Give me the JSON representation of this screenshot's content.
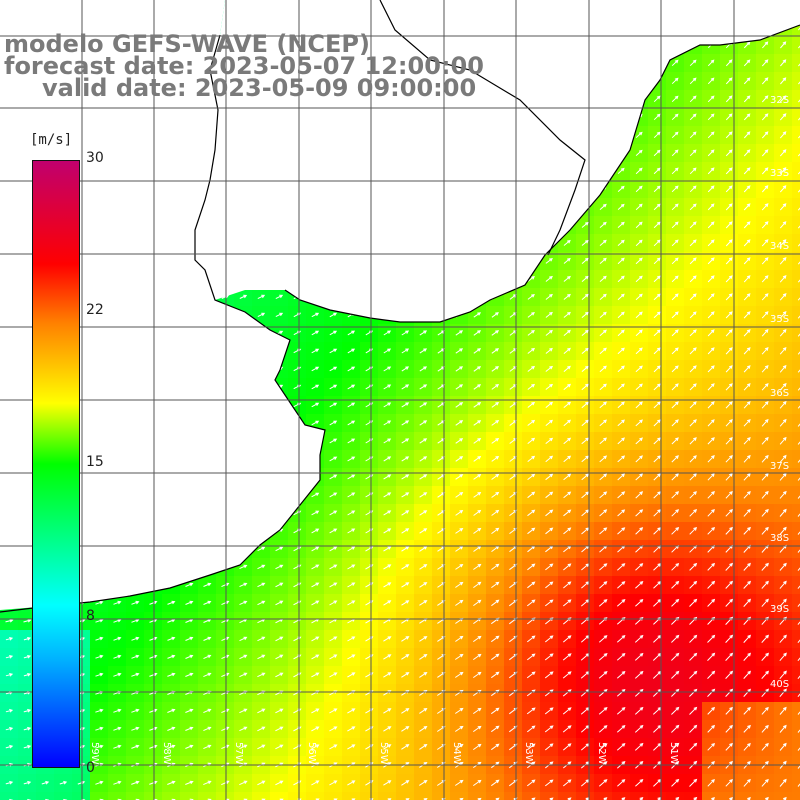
{
  "title": {
    "line1": "modelo GEFS-WAVE (NCEP)",
    "line2": "forecast date: 2023-05-07 12:00:00",
    "line3": "valid date: 2023-05-09 09:00:00"
  },
  "legend": {
    "unit": "[m/s]",
    "ticks": [
      "30",
      "22",
      "15",
      "8",
      "0"
    ],
    "tick_values": [
      30,
      22,
      15,
      8,
      0
    ],
    "scale_max": 30,
    "colors": [
      "#0000ff",
      "#00b4ff",
      "#00ffff",
      "#00ff00",
      "#ffff00",
      "#ff8000",
      "#ff0000",
      "#c0006e"
    ]
  },
  "latitude_labels": [
    "32S",
    "33S",
    "34S",
    "35S",
    "36S",
    "37S",
    "38S",
    "39S",
    "40S"
  ],
  "longitude_labels": [
    "59W",
    "58W",
    "57W",
    "56W",
    "55W",
    "54W",
    "53W",
    "52W",
    "51W"
  ],
  "colors": {
    "land": "#ffffff",
    "coastline": "#000000",
    "grid": "#555555",
    "arrow": "#ffffff",
    "title": "#7a7a7a"
  }
}
